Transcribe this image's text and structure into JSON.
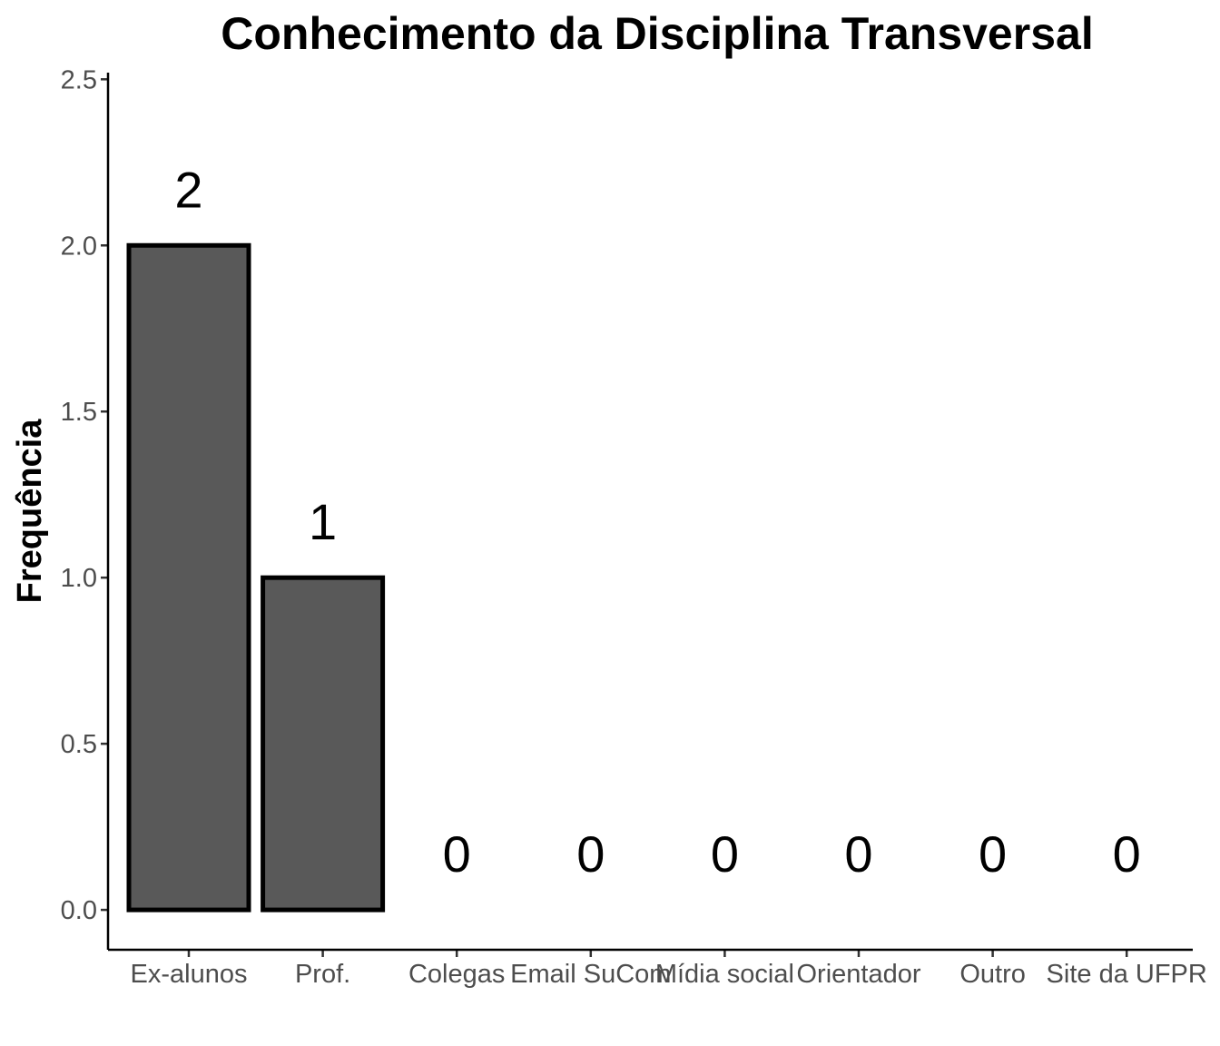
{
  "chart_data": {
    "type": "bar",
    "title": "Conhecimento da Disciplina Transversal",
    "xlabel": "",
    "ylabel": "Frequência",
    "categories": [
      "Ex-alunos",
      "Prof.",
      "Colegas",
      "Email SuCom",
      "Mídia social",
      "Orientador",
      "Outro",
      "Site da UFPR"
    ],
    "values": [
      2,
      1,
      0,
      0,
      0,
      0,
      0,
      0
    ],
    "data_labels": [
      "2",
      "1",
      "0",
      "0",
      "0",
      "0",
      "0",
      "0"
    ],
    "ylim": [
      -0.12,
      2.52
    ],
    "yticks": [
      0.0,
      0.5,
      1.0,
      1.5,
      2.0,
      2.5
    ],
    "ytick_labels": [
      "0.0",
      "0.5",
      "1.0",
      "1.5",
      "2.0",
      "2.5"
    ],
    "grid": false,
    "legend": "none",
    "colors": {
      "bar_fill": "#595959",
      "bar_stroke": "#000000"
    }
  }
}
